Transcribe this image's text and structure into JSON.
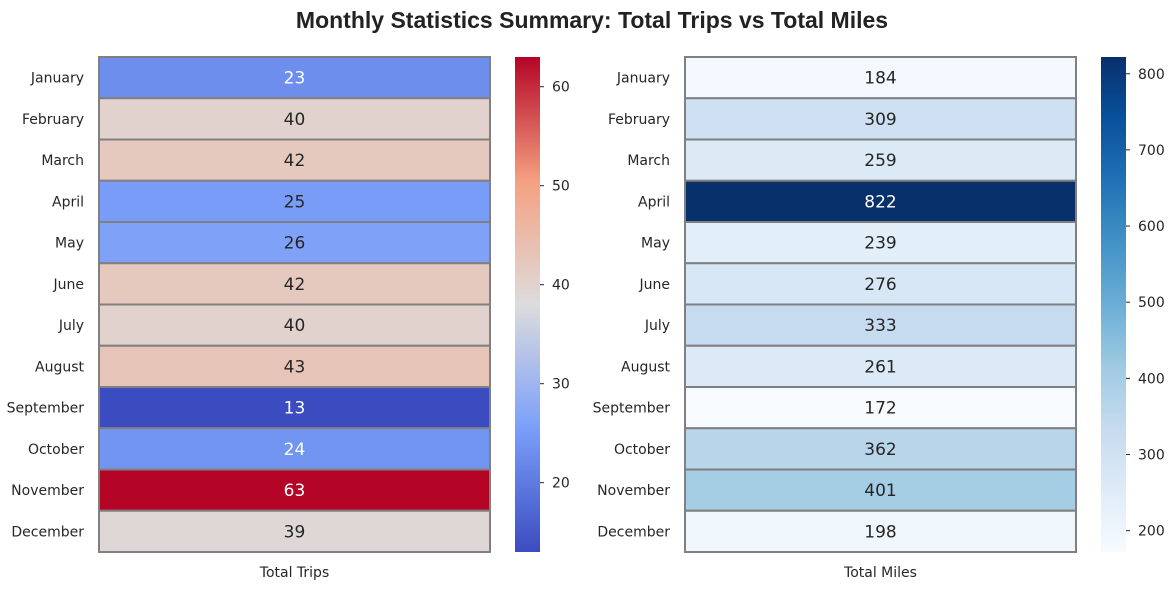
{
  "chart_data": {
    "type": "heatmap",
    "title": "Monthly Statistics Summary: Total Trips vs Total Miles",
    "rows": [
      "January",
      "February",
      "March",
      "April",
      "May",
      "June",
      "July",
      "August",
      "September",
      "October",
      "November",
      "December"
    ],
    "panels": [
      {
        "column": "Total Trips",
        "colormap": "coolwarm",
        "values": [
          23,
          40,
          42,
          25,
          26,
          42,
          40,
          43,
          13,
          24,
          63,
          39
        ],
        "vmin": 13,
        "vmax": 63,
        "colorbar_ticks": [
          20,
          30,
          40,
          50,
          60
        ]
      },
      {
        "column": "Total Miles",
        "colormap": "Blues",
        "values": [
          184,
          309,
          259,
          822,
          239,
          276,
          333,
          261,
          172,
          362,
          401,
          198
        ],
        "vmin": 172,
        "vmax": 822,
        "colorbar_ticks": [
          200,
          300,
          400,
          500,
          600,
          700,
          800
        ]
      }
    ]
  }
}
